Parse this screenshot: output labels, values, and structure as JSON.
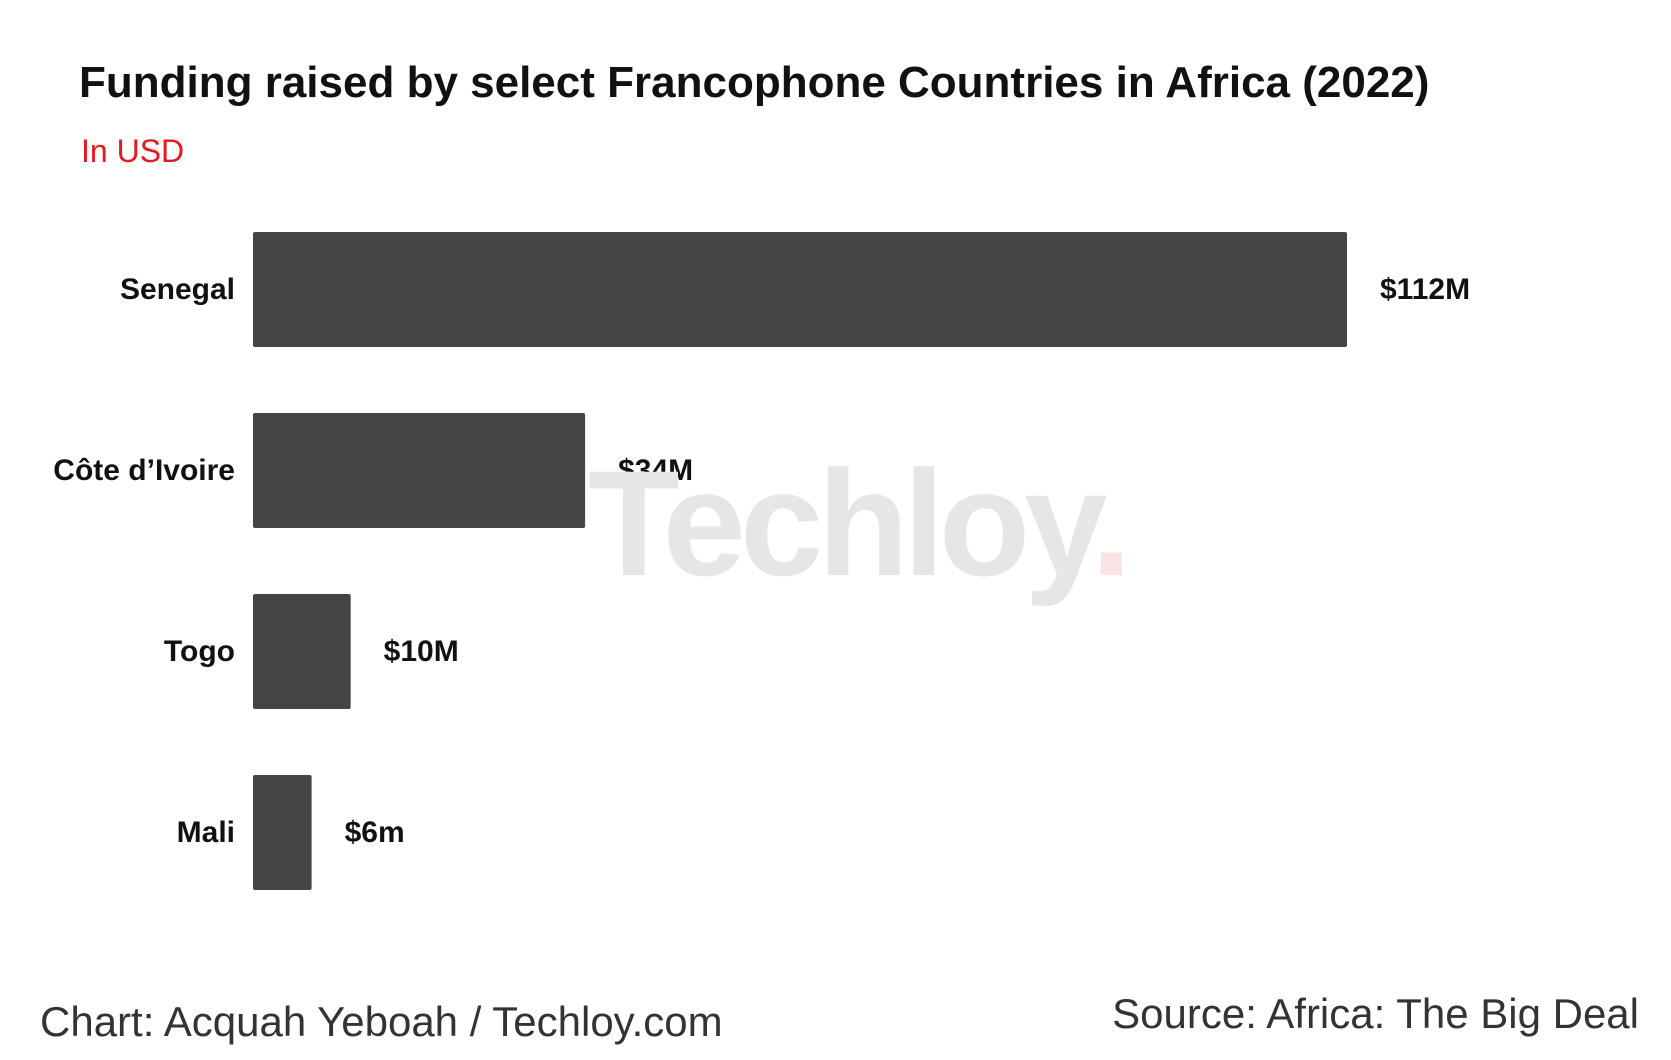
{
  "title": "Funding raised by select Francophone Countries in Africa (2022)",
  "subtitle": "In USD",
  "footer": {
    "credit": "Chart: Acquah Yeboah / Techloy.com",
    "source": "Source: Africa: The Big Deal"
  },
  "watermark": {
    "text": "Techloy",
    "dot": "."
  },
  "colors": {
    "bar": "#444444",
    "subtitle": "#e8191d",
    "text": "#111111"
  },
  "chart_data": {
    "type": "bar",
    "orientation": "horizontal",
    "title": "Funding raised by select Francophone Countries in Africa (2022)",
    "subtitle": "In USD",
    "xlabel": "",
    "ylabel": "",
    "categories": [
      "Senegal",
      "Côte d’Ivoire",
      "Togo",
      "Mali"
    ],
    "values": [
      112,
      34,
      10,
      6
    ],
    "unit": "M USD",
    "data_labels": [
      "$112M",
      "$34M",
      "$10M",
      "$6m"
    ],
    "xlim": [
      0,
      112
    ],
    "grid": false,
    "legend": "none"
  }
}
